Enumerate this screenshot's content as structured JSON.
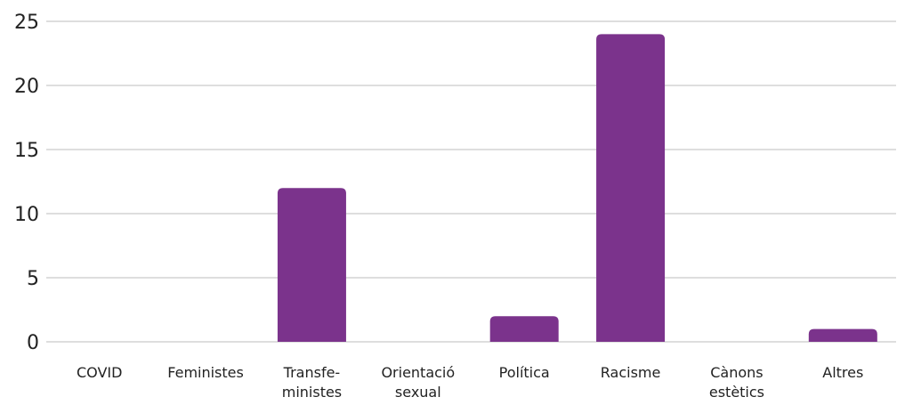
{
  "chart_data": {
    "type": "bar",
    "categories": [
      [
        "COVID"
      ],
      [
        "Feministes"
      ],
      [
        "Transfe-",
        "ministes"
      ],
      [
        "Orientació",
        "sexual"
      ],
      [
        "Política"
      ],
      [
        "Racisme"
      ],
      [
        "Cànons",
        "estètics"
      ],
      [
        "Altres"
      ]
    ],
    "values": [
      0,
      0,
      12,
      0,
      2,
      24,
      0,
      1
    ],
    "ylim": [
      0,
      25
    ],
    "yticks": [
      "0",
      "5",
      "10",
      "15",
      "20",
      "25"
    ],
    "grid": true,
    "bar_color": "#7b338c",
    "title": "",
    "xlabel": "",
    "ylabel": ""
  }
}
